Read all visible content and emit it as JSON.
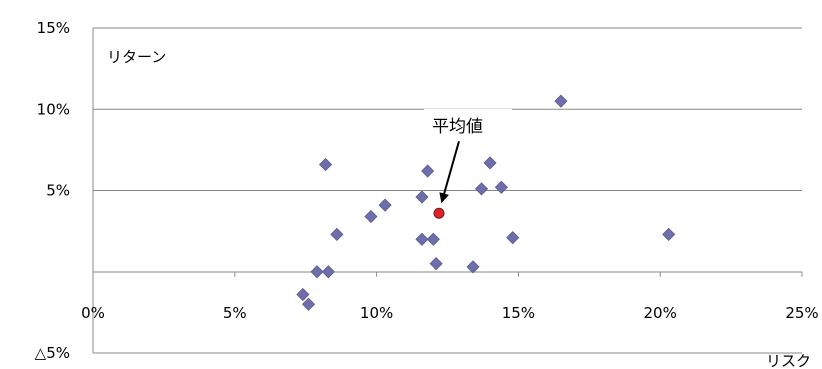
{
  "chart_data": {
    "type": "scatter",
    "ylabel": "リターン",
    "xlabel": "リスク",
    "xlim": [
      0,
      25
    ],
    "ylim": [
      -5,
      15
    ],
    "x_ticks": [
      {
        "value": 0,
        "label": "0%"
      },
      {
        "value": 5,
        "label": "5%"
      },
      {
        "value": 10,
        "label": "10%"
      },
      {
        "value": 15,
        "label": "15%"
      },
      {
        "value": 20,
        "label": "20%"
      },
      {
        "value": 25,
        "label": "25%"
      }
    ],
    "y_ticks": [
      {
        "value": 15,
        "label": "15%"
      },
      {
        "value": 10,
        "label": "10%"
      },
      {
        "value": 5,
        "label": "5%"
      },
      {
        "value": -5,
        "label": "△5%"
      }
    ],
    "grid": "horizontal",
    "series": [
      {
        "marker": "diamond",
        "color": "#6E6EAA",
        "points": [
          {
            "x": 7.4,
            "y": -1.4
          },
          {
            "x": 7.6,
            "y": -2.0
          },
          {
            "x": 7.9,
            "y": 0.0
          },
          {
            "x": 8.2,
            "y": 6.6
          },
          {
            "x": 8.3,
            "y": 0.0
          },
          {
            "x": 8.6,
            "y": 2.3
          },
          {
            "x": 9.8,
            "y": 3.4
          },
          {
            "x": 10.3,
            "y": 4.1
          },
          {
            "x": 11.6,
            "y": 4.6
          },
          {
            "x": 11.6,
            "y": 2.0
          },
          {
            "x": 11.8,
            "y": 6.2
          },
          {
            "x": 12.0,
            "y": 2.0
          },
          {
            "x": 12.1,
            "y": 0.5
          },
          {
            "x": 13.4,
            "y": 0.3
          },
          {
            "x": 13.7,
            "y": 5.1
          },
          {
            "x": 14.0,
            "y": 6.7
          },
          {
            "x": 14.4,
            "y": 5.2
          },
          {
            "x": 14.8,
            "y": 2.1
          },
          {
            "x": 16.5,
            "y": 10.5
          },
          {
            "x": 20.3,
            "y": 2.3
          }
        ]
      },
      {
        "marker": "circle",
        "color": "#E0202A",
        "points": [
          {
            "x": 12.2,
            "y": 3.6
          }
        ]
      }
    ],
    "annotation": {
      "text": "平均値",
      "target_x": 12.2,
      "target_y": 3.6
    }
  }
}
